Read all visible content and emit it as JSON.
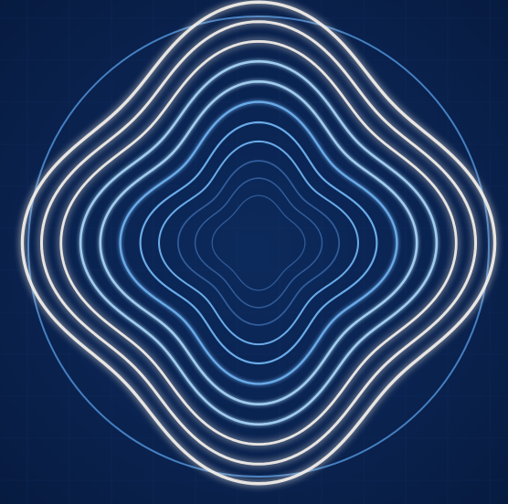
{
  "colors": {
    "background": "#0a2452",
    "grid": "#1a3a72",
    "outer_circle": "#4f8fd6",
    "inner_dark": "#3f6fb0",
    "mid_blue": "#6fb2f0",
    "light_blue": "#a9d6f7",
    "white": "#f4f0ea"
  },
  "art": {
    "description_icon": "concentric-wavy-rings-icon",
    "ring_count": 11
  }
}
